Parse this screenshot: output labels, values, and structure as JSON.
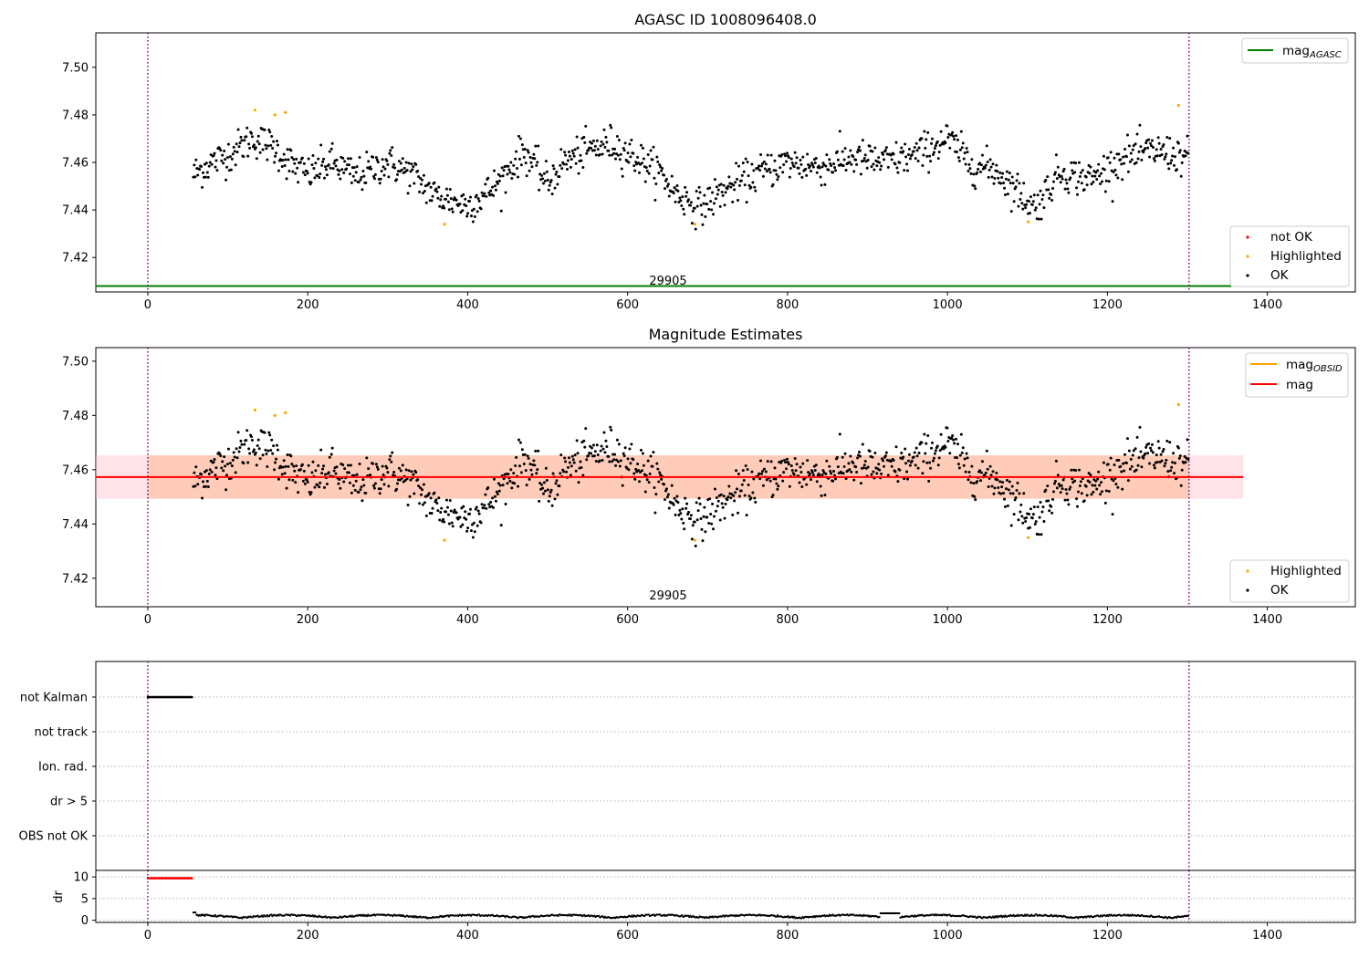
{
  "chart_data": [
    {
      "type": "scatter",
      "title": "AGASC ID 1008096408.0",
      "xlim": [
        -65,
        1510
      ],
      "ylim": [
        7.4055,
        7.5145
      ],
      "x_ticks": [
        0,
        200,
        400,
        600,
        800,
        1000,
        1200,
        1400
      ],
      "y_ticks": [
        "7.42",
        "7.44",
        "7.46",
        "7.48",
        "7.50"
      ],
      "obsid_label": "29905",
      "obsid_label_x": 650,
      "obsid_bounds": [
        0,
        1302
      ],
      "mag_agasc": 7.408,
      "mag_agasc_range": [
        -65,
        1370
      ],
      "legend_upper": [
        {
          "label": "mag",
          "sub": "AGASC",
          "color": "#008000"
        }
      ],
      "legend_lower": [
        {
          "label": "not OK",
          "color": "#ff0000"
        },
        {
          "label": "Highlighted",
          "color": "#ffa500"
        },
        {
          "label": "OK",
          "color": "#000000"
        }
      ],
      "highlighted_points": [
        {
          "x": 134,
          "y": 7.482
        },
        {
          "x": 159,
          "y": 7.48
        },
        {
          "x": 172,
          "y": 7.481
        },
        {
          "x": 371,
          "y": 7.434
        },
        {
          "x": 684,
          "y": 7.434
        },
        {
          "x": 1101,
          "y": 7.435
        },
        {
          "x": 1289,
          "y": 7.484
        }
      ],
      "ok_trend": {
        "x": [
          57,
          80,
          100,
          130,
          155,
          180,
          200,
          230,
          260,
          300,
          330,
          360,
          380,
          400,
          420,
          440,
          470,
          500,
          520,
          550,
          580,
          610,
          640,
          660,
          690,
          720,
          760,
          800,
          840,
          880,
          920,
          960,
          1000,
          1030,
          1060,
          1090,
          1110,
          1140,
          1180,
          1220,
          1260,
          1302
        ],
        "y": [
          7.455,
          7.46,
          7.463,
          7.47,
          7.467,
          7.459,
          7.455,
          7.46,
          7.454,
          7.46,
          7.455,
          7.446,
          7.444,
          7.442,
          7.446,
          7.452,
          7.465,
          7.451,
          7.46,
          7.465,
          7.468,
          7.462,
          7.456,
          7.447,
          7.441,
          7.448,
          7.455,
          7.46,
          7.458,
          7.462,
          7.46,
          7.463,
          7.47,
          7.459,
          7.457,
          7.447,
          7.441,
          7.456,
          7.453,
          7.462,
          7.465,
          7.462
        ]
      },
      "ok_scatter": 0.0045
    },
    {
      "type": "scatter",
      "title": "Magnitude Estimates",
      "xlim": [
        -65,
        1510
      ],
      "ylim": [
        7.4095,
        7.505
      ],
      "x_ticks": [
        0,
        200,
        400,
        600,
        800,
        1000,
        1200,
        1400
      ],
      "y_ticks": [
        "7.42",
        "7.44",
        "7.46",
        "7.48",
        "7.50"
      ],
      "obsid_label": "29905",
      "obsid_label_x": 650,
      "obsid_bounds": [
        0,
        1302
      ],
      "mag": 7.4573,
      "mag_range": [
        -65,
        1370
      ],
      "mag_band_outer": [
        7.4493,
        7.4653
      ],
      "mag_obsid": 7.4573,
      "mag_obsid_range": [
        0,
        1302
      ],
      "legend_upper": [
        {
          "label": "mag",
          "sub": "OBSID",
          "color": "#ffa500"
        },
        {
          "label": "mag",
          "sub": "",
          "color": "#ff0000"
        }
      ],
      "legend_lower": [
        {
          "label": "Highlighted",
          "color": "#ffa500"
        },
        {
          "label": "OK",
          "color": "#000000"
        }
      ]
    },
    {
      "type": "scatter",
      "title": "",
      "xlim": [
        -65,
        1510
      ],
      "flag_categories": [
        "not Kalman",
        "not track",
        "Ion. rad.",
        "dr > 5",
        "OBS not OK"
      ],
      "not_kalman_range": [
        0,
        56
      ],
      "obsid_bounds": [
        0,
        1302
      ],
      "dr_panel": {
        "ylim": [
          -0.5,
          11.5
        ],
        "y_ticks": [
          "0",
          "5",
          "10"
        ],
        "ylabel": "dr",
        "bad_dr_value": 9.7,
        "bad_dr_range": [
          0,
          56
        ],
        "good_dr_range": [
          57,
          1302
        ]
      },
      "x_ticks": [
        0,
        200,
        400,
        600,
        800,
        1000,
        1200,
        1400
      ]
    }
  ]
}
